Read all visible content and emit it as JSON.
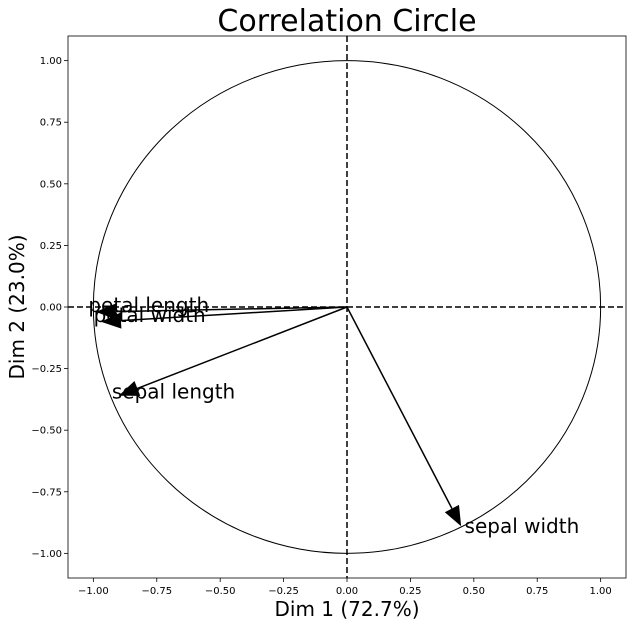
{
  "chart_data": {
    "type": "scatter",
    "title": "Correlation Circle",
    "xlabel": "Dim 1 (72.7%)",
    "ylabel": "Dim 2 (23.0%)",
    "xlim": [
      -1.1,
      1.1
    ],
    "ylim": [
      -1.1,
      1.1
    ],
    "xticks": [
      -1.0,
      -0.75,
      -0.5,
      -0.25,
      0.0,
      0.25,
      0.5,
      0.75,
      1.0
    ],
    "yticks": [
      -1.0,
      -0.75,
      -0.5,
      -0.25,
      0.0,
      0.25,
      0.5,
      0.75,
      1.0
    ],
    "xtick_labels": [
      "−1.00",
      "−0.75",
      "−0.50",
      "−0.25",
      "0.00",
      "0.25",
      "0.50",
      "0.75",
      "1.00"
    ],
    "ytick_labels": [
      "−1.00",
      "−0.75",
      "−0.50",
      "−0.25",
      "0.00",
      "0.25",
      "0.50",
      "0.75",
      "1.00"
    ],
    "unit_circle": true,
    "reference_lines": [
      {
        "orientation": "horizontal",
        "value": 0,
        "style": "dashed"
      },
      {
        "orientation": "vertical",
        "value": 0,
        "style": "dashed"
      }
    ],
    "grid": false,
    "vectors": [
      {
        "label": "petal length",
        "x": -0.99,
        "y": -0.02
      },
      {
        "label": "petal width",
        "x": -0.97,
        "y": -0.06
      },
      {
        "label": "sepal length",
        "x": -0.9,
        "y": -0.36
      },
      {
        "label": "sepal width",
        "x": 0.45,
        "y": -0.89
      }
    ],
    "color": "#000000"
  }
}
